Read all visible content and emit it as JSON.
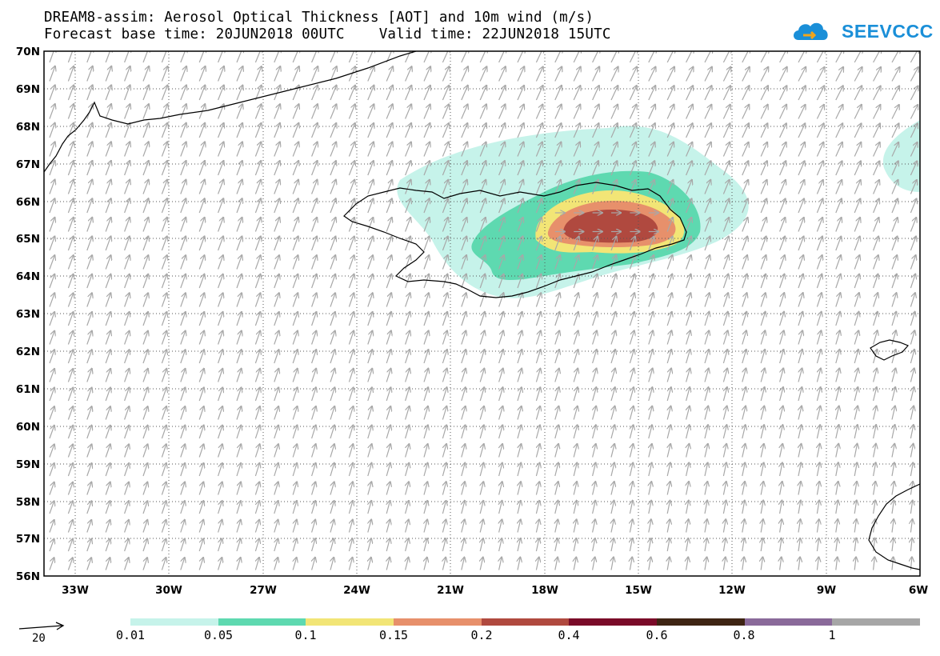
{
  "header": {
    "title_line1": "DREAM8-assim: Aerosol Optical Thickness [AOT] and 10m wind (m/s)",
    "title_line2": "Forecast base time: 20JUN2018 00UTC    Valid time: 22JUN2018 15UTC"
  },
  "logo": {
    "text": "SEEVCCC",
    "color": "#1a8fd8"
  },
  "map": {
    "lat_labels": [
      "70N",
      "69N",
      "68N",
      "67N",
      "66N",
      "65N",
      "64N",
      "63N",
      "62N",
      "61N",
      "60N",
      "59N",
      "58N",
      "57N",
      "56N"
    ],
    "lon_labels": [
      "33W",
      "30W",
      "27W",
      "24W",
      "21W",
      "18W",
      "15W",
      "12W",
      "9W",
      "6W"
    ],
    "lat_range": [
      56,
      70
    ],
    "lon_range": [
      -34,
      -6
    ],
    "wind_arrow_color": "#a8a8a8",
    "coastline_color": "#000000"
  },
  "colorbar": {
    "colors": [
      "#c6f3ea",
      "#5ed9b0",
      "#f2e576",
      "#e7906b",
      "#b0493f",
      "#7a0a28",
      "#3e2413",
      "#8a6a9a",
      "#a6a6a6"
    ],
    "labels": [
      "0.01",
      "0.05",
      "0.1",
      "0.15",
      "0.2",
      "0.4",
      "0.6",
      "0.8",
      "1"
    ]
  },
  "wind_legend": {
    "value": "20"
  }
}
